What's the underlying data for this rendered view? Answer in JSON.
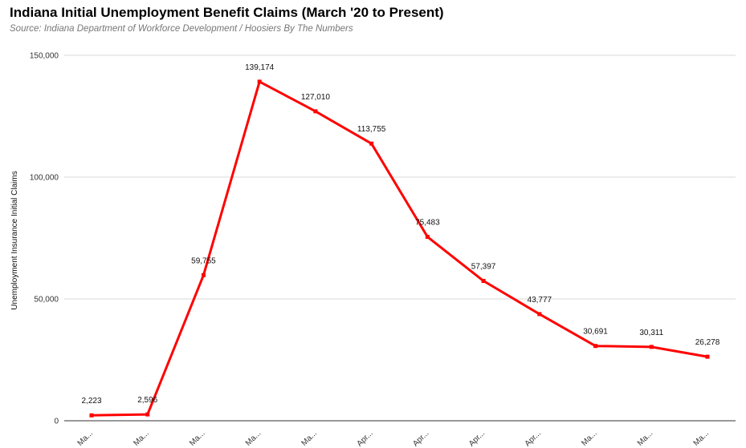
{
  "chart_data": {
    "type": "line",
    "title": "Indiana Initial Unemployment Benefit Claims (March '20 to Present)",
    "subtitle": "Source: Indiana Department of Workforce Development / Hoosiers By The Numbers",
    "ylabel": "Unemployment Insurance Initial Claims",
    "xlabel": "",
    "ylim": [
      0,
      150000
    ],
    "yticks": [
      0,
      50000,
      100000,
      150000
    ],
    "ytick_labels": [
      "0",
      "50,000",
      "100,000",
      "150,000"
    ],
    "grid": true,
    "categories": [
      "Ma...",
      "Ma...",
      "Ma...",
      "Ma...",
      "Ma...",
      "Apr...",
      "Apr...",
      "Apr...",
      "Apr...",
      "Ma...",
      "Ma...",
      "Ma..."
    ],
    "values": [
      2223,
      2596,
      59755,
      139174,
      127010,
      113755,
      75483,
      57397,
      43777,
      30691,
      30311,
      26278
    ],
    "data_labels": [
      "2,223",
      "2,596",
      "59,755",
      "139,174",
      "127,010",
      "113,755",
      "75,483",
      "57,397",
      "43,777",
      "30,691",
      "30,311",
      "26,278"
    ],
    "line_color": "#ff0000",
    "grid_color": "#d9d9d9"
  }
}
